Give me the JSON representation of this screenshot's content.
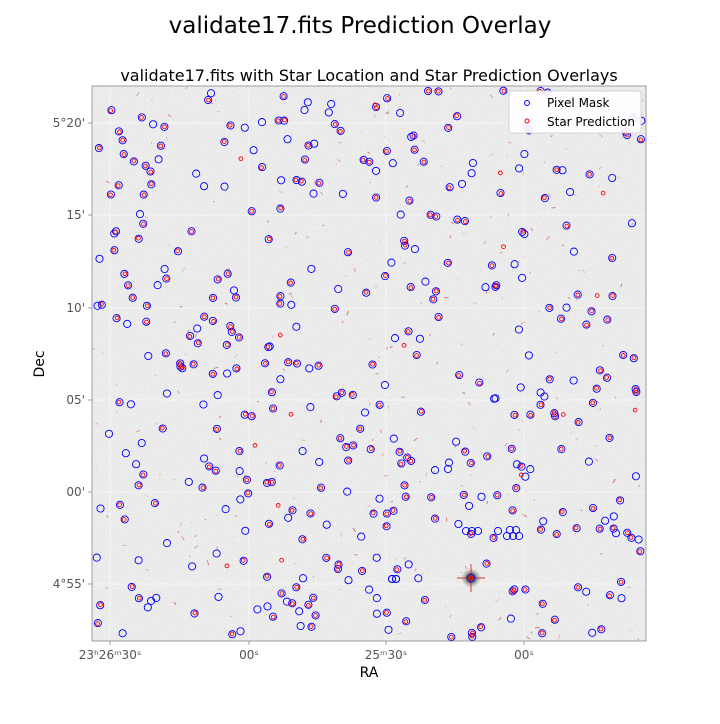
{
  "figure": {
    "title": "validate17.fits Prediction Overlay"
  },
  "chart_data": {
    "type": "scatter",
    "title": "validate17.fits with Star Location and Star Prediction Overlays",
    "xlabel": "RA",
    "ylabel": "Dec",
    "grid": true,
    "legend_position": "upper-right",
    "x_axis": {
      "units": "RA (hms), increasing to the left",
      "range": [
        "23h26m34s",
        "23h25m08s"
      ],
      "ticks": [
        {
          "label": "23ʰ26ᵐ30ˢ",
          "value": "23h26m30s"
        },
        {
          "label": "00ˢ",
          "value": "23h26m00s"
        },
        {
          "label": "25ᵐ30ˢ",
          "value": "23h25m30s"
        },
        {
          "label": "00ˢ",
          "value": "23h25m00s"
        }
      ]
    },
    "y_axis": {
      "units": "Dec (arcmin from +4µensures)",
      "range": [
        "+4°53.8'",
        "+5°22.0'"
      ],
      "ticks": [
        {
          "label": "4°55'",
          "value": "+4°55'"
        },
        {
          "label": "00'",
          "value": "+5°00'"
        },
        {
          "label": "05'",
          "value": "+5°05'"
        },
        {
          "label": "10'",
          "value": "+5°10'"
        },
        {
          "label": "15'",
          "value": "+5°15'"
        },
        {
          "label": "5°20'",
          "value": "+5°20'"
        }
      ]
    },
    "series": [
      {
        "name": "Pixel Mask",
        "marker": "open-circle",
        "color": "#0000ff"
      },
      {
        "name": "Star Prediction",
        "marker": "small-open-circle",
        "color": "#ff0000"
      }
    ],
    "background": "grey noisy astronomical image"
  },
  "colors": {
    "pixel_mask": "#0000ff",
    "star_prediction": "#ff0000",
    "image_bg": "#d9d9d9",
    "tick_text": "#555555"
  }
}
